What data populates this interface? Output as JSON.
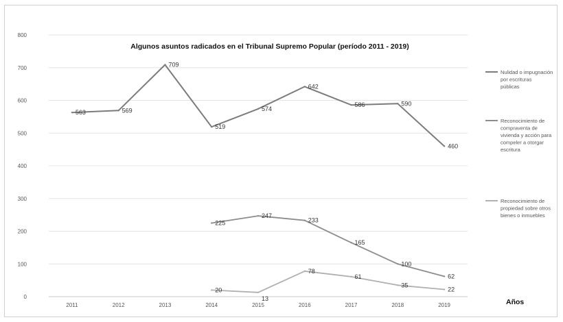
{
  "chart_data": {
    "type": "line",
    "title": "Algunos asuntos radicados en el Tribunal Supremo Popular (período 2011 - 2019)",
    "xlabel": "Años",
    "ylabel": "",
    "ylim": [
      0,
      800
    ],
    "yticks": [
      "0",
      "100",
      "200",
      "300",
      "400",
      "500",
      "600",
      "700",
      "800"
    ],
    "categories": [
      "2011",
      "2012",
      "2013",
      "2014",
      "2015",
      "2016",
      "2017",
      "2018",
      "2019"
    ],
    "grid": true,
    "legend_position": "right",
    "series": [
      {
        "name": "Nulidad o impugnación por escrituras públicas",
        "values": [
          563,
          569,
          709,
          519,
          574,
          642,
          586,
          590,
          460
        ],
        "color": "#7b7b7b"
      },
      {
        "name": "Reconocimiento de compraventa de vivienda y acción para compeler a otorgar escritura",
        "values": [
          null,
          null,
          null,
          225,
          247,
          233,
          165,
          100,
          62
        ],
        "color": "#8c8c8c"
      },
      {
        "name": "Reconocimiento de propiedad sobre otros bienes o inmuebles",
        "values": [
          null,
          null,
          null,
          20,
          13,
          78,
          61,
          35,
          22
        ],
        "color": "#b0b0b0"
      }
    ]
  }
}
